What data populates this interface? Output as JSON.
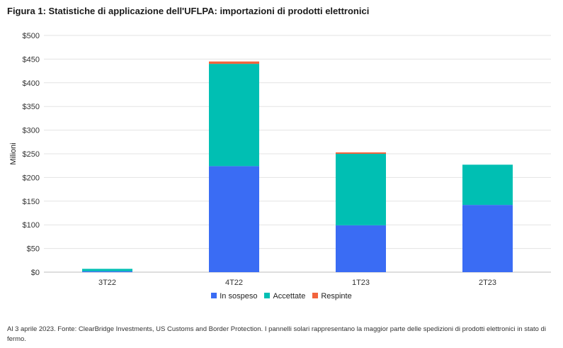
{
  "title": "Figura 1: Statistiche di applicazione dell'UFLPA: importazioni di prodotti elettronici",
  "note": "Al 3 aprile 2023. Fonte: ClearBridge Investments, US Customs and Border Protection. I pannelli solari rappresentano la maggior parte delle spedizioni di prodotti elettronici in stato di fermo.",
  "chart_data": {
    "type": "bar",
    "stacked": true,
    "categories": [
      "3T22",
      "4T22",
      "1T23",
      "2T23"
    ],
    "series": [
      {
        "name": "In sospeso",
        "color": "#3a6cf4",
        "values": [
          2,
          224,
          99,
          142
        ]
      },
      {
        "name": "Accettate",
        "color": "#00bfb3",
        "values": [
          5,
          216,
          151,
          85
        ]
      },
      {
        "name": "Respinte",
        "color": "#f2643d",
        "values": [
          0,
          5,
          3,
          0
        ]
      }
    ],
    "ylabel": "Milioni",
    "ylim": [
      0,
      500
    ],
    "yticks": [
      "$0",
      "$50",
      "$100",
      "$150",
      "$200",
      "$250",
      "$300",
      "$350",
      "$400",
      "$450",
      "$500"
    ],
    "grid": true,
    "legend": "bottom"
  }
}
